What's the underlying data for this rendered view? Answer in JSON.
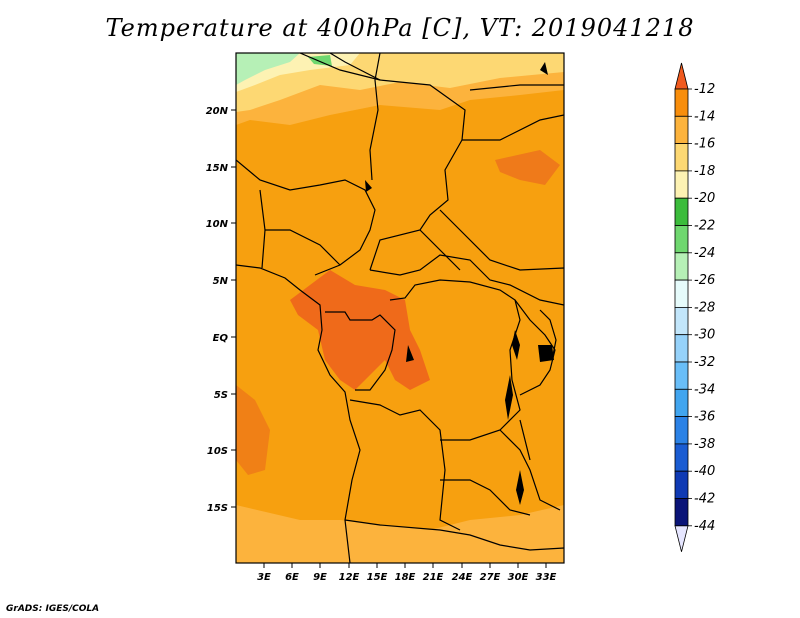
{
  "title": "Temperature at 400hPa [C], VT: 2019041218",
  "credit": "GrADS: IGES/COLA",
  "map": {
    "lat_labels": [
      "20N",
      "15N",
      "10N",
      "5N",
      "EQ",
      "5S",
      "10S",
      "15S"
    ],
    "lon_labels": [
      "3E",
      "6E",
      "9E",
      "12E",
      "15E",
      "18E",
      "21E",
      "24E",
      "27E",
      "30E",
      "33E"
    ]
  },
  "colorbar": {
    "labels": [
      "-12",
      "-14",
      "-16",
      "-18",
      "-20",
      "-22",
      "-24",
      "-26",
      "-28",
      "-30",
      "-32",
      "-34",
      "-36",
      "-38",
      "-40",
      "-42",
      "-44"
    ],
    "colors": [
      "#f05a1e",
      "#f88e0c",
      "#fcb33d",
      "#fdd873",
      "#fdf2b3",
      "#3cbc3c",
      "#6fd76f",
      "#b6f0b6",
      "#e6fbfb",
      "#c2e6fb",
      "#96d2fa",
      "#69bef8",
      "#41a5ef",
      "#2b82e6",
      "#1a5cd2",
      "#0f3ab4",
      "#0a1478",
      "#e6e6ff"
    ]
  },
  "colors": {
    "dominant": "#f7a00f",
    "warm_core": "#ef6a1a",
    "cool_north": "#fdd873"
  }
}
